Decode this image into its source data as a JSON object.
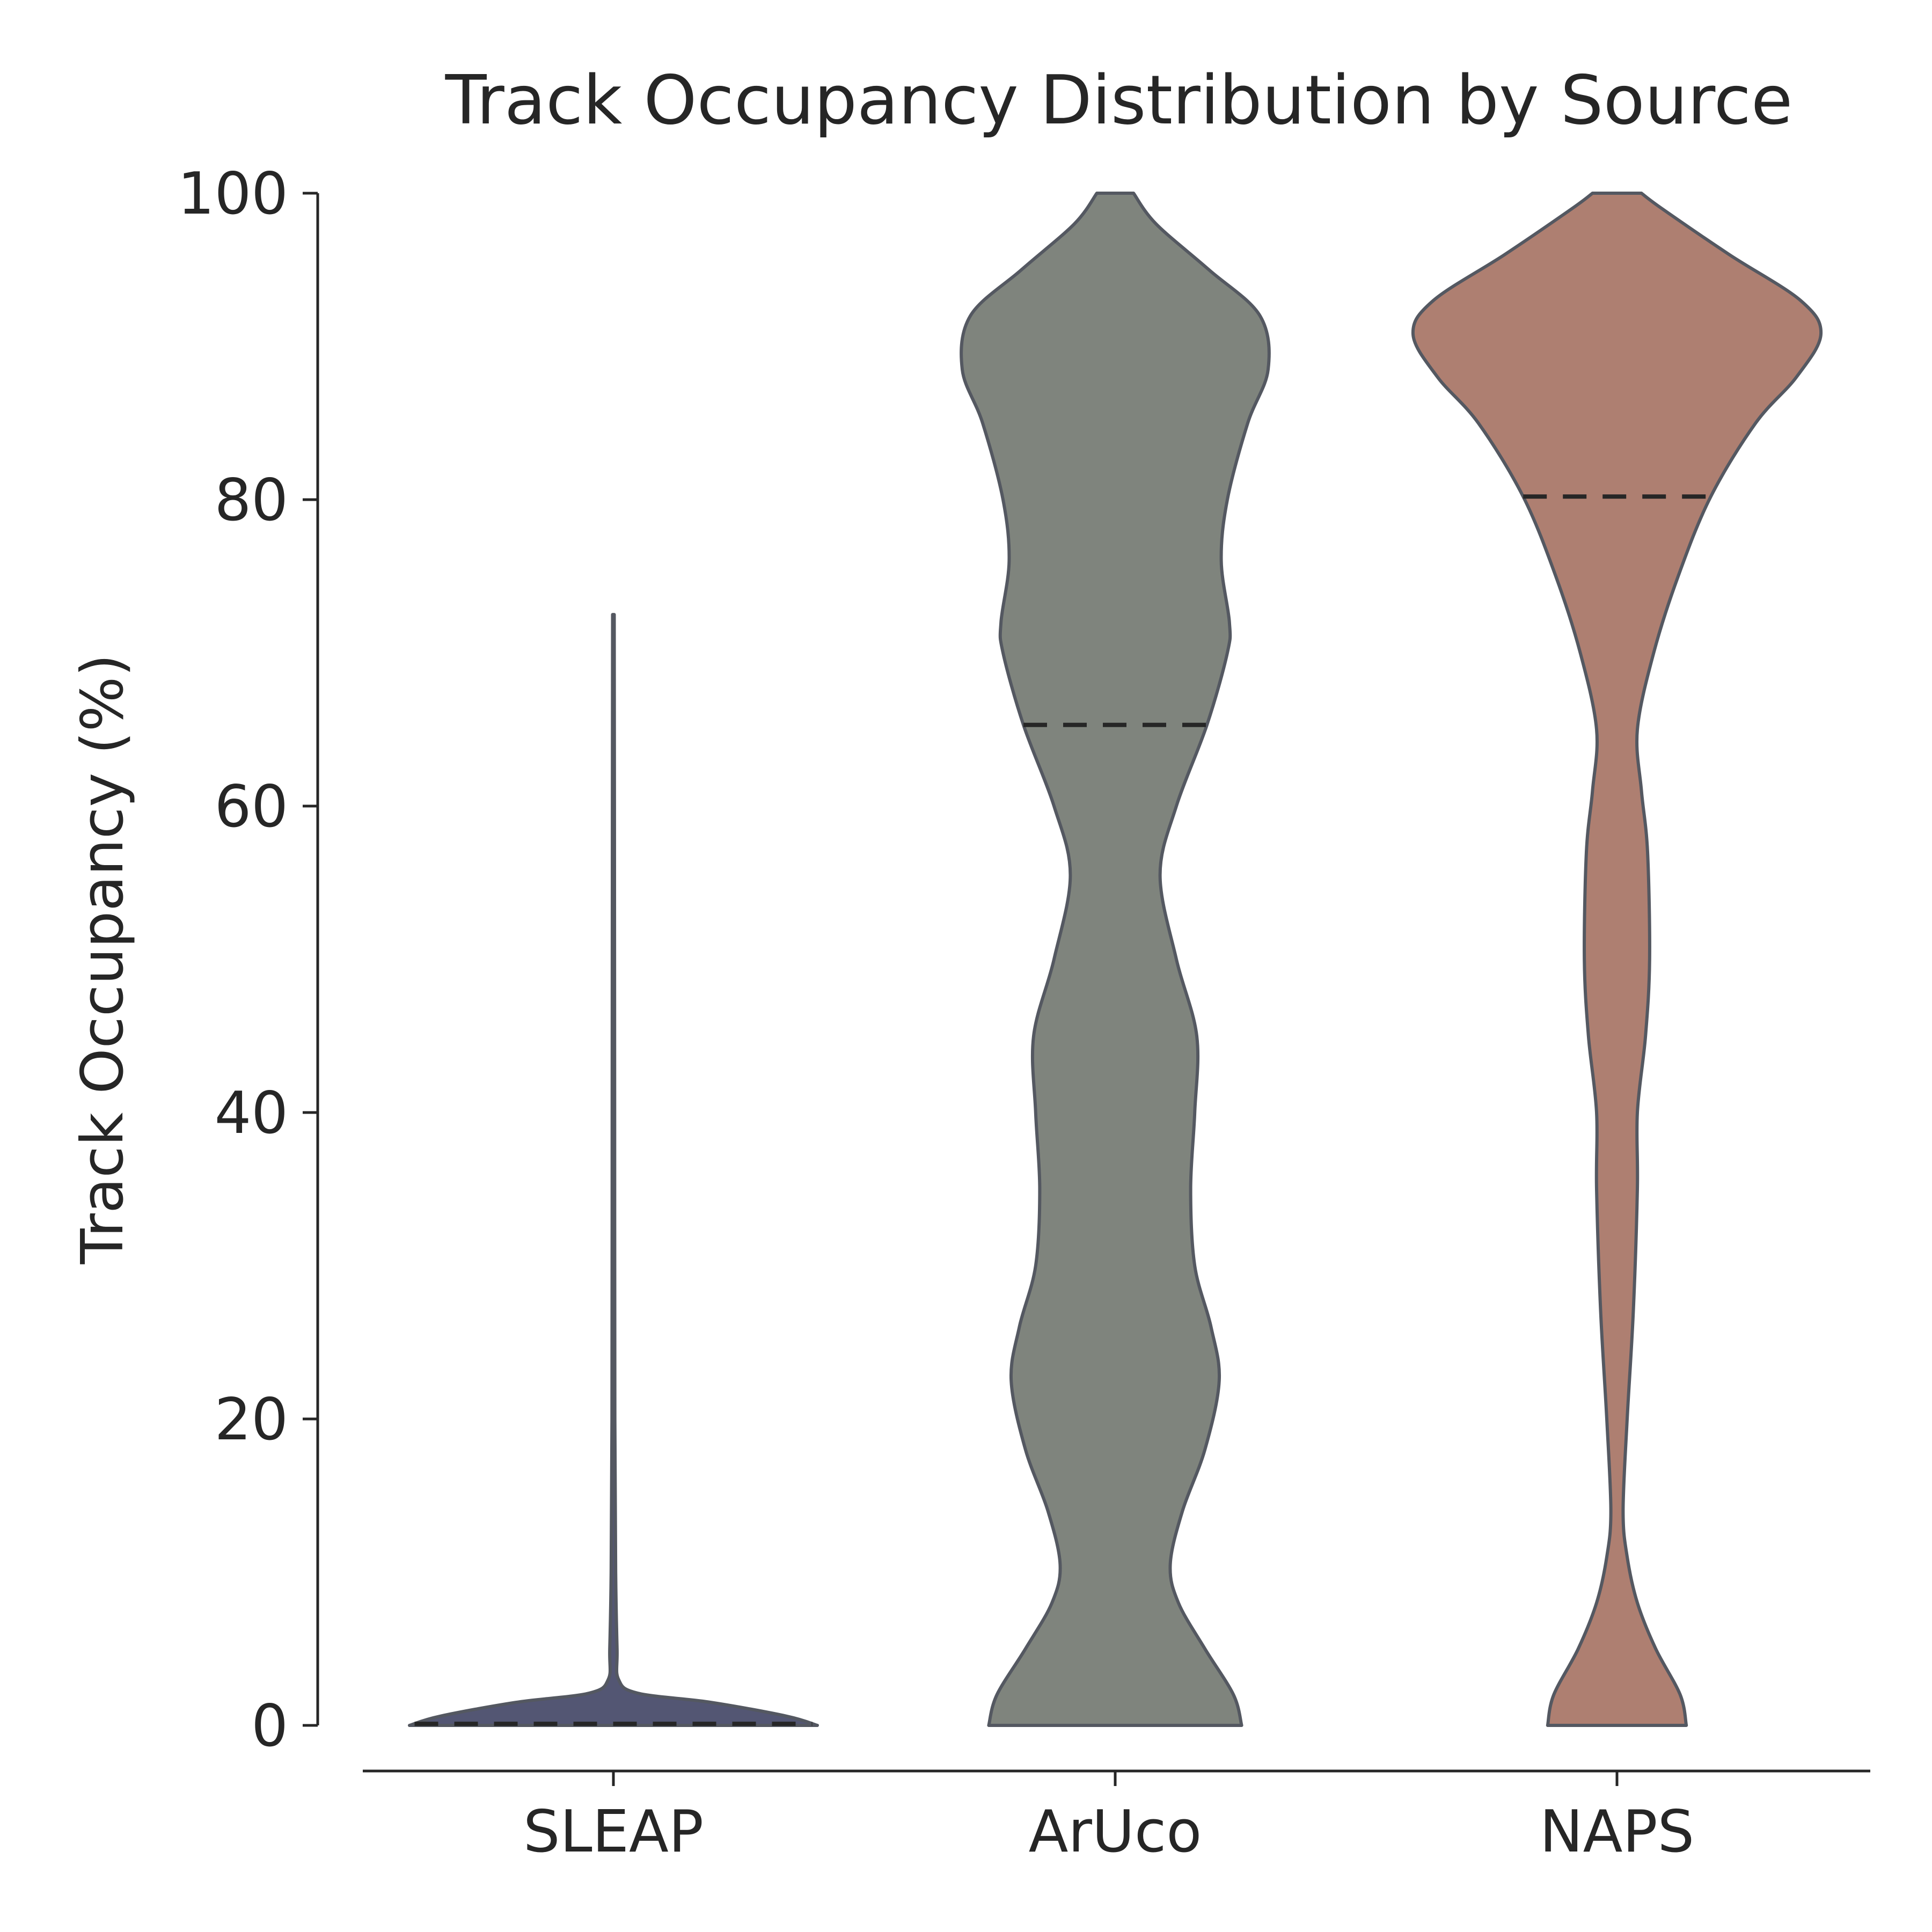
{
  "chart_data": {
    "type": "violin",
    "title": "Track Occupancy Distribution by Source",
    "ylabel": "Track Occupancy (%)",
    "xlabel": "",
    "ylim": [
      0,
      100
    ],
    "yticks": [
      0,
      20,
      40,
      60,
      80,
      100
    ],
    "categories": [
      "SLEAP",
      "ArUco",
      "NAPS"
    ],
    "grid": false,
    "legend": "none",
    "series": [
      {
        "category": "SLEAP",
        "color": "#535673",
        "median": 0.1,
        "range": [
          0,
          72.5
        ],
        "density": [
          [
            0,
            1.0
          ],
          [
            0.6,
            0.85
          ],
          [
            1.5,
            0.48
          ],
          [
            2.1,
            0.12
          ],
          [
            3,
            0.025
          ],
          [
            5,
            0.018
          ],
          [
            10,
            0.011
          ],
          [
            20,
            0.007
          ],
          [
            40,
            0.006
          ],
          [
            60,
            0.005
          ],
          [
            72.5,
            0.004
          ]
        ]
      },
      {
        "category": "ArUco",
        "color": "#7f847d",
        "median": 65.3,
        "range": [
          0,
          100
        ],
        "density": [
          [
            0,
            0.62
          ],
          [
            2,
            0.58
          ],
          [
            5,
            0.44
          ],
          [
            8,
            0.31
          ],
          [
            10.5,
            0.27
          ],
          [
            14,
            0.33
          ],
          [
            18,
            0.44
          ],
          [
            22.5,
            0.51
          ],
          [
            26,
            0.47
          ],
          [
            30,
            0.39
          ],
          [
            35,
            0.37
          ],
          [
            40,
            0.39
          ],
          [
            45,
            0.4
          ],
          [
            50,
            0.3
          ],
          [
            55.5,
            0.22
          ],
          [
            60,
            0.3
          ],
          [
            65.3,
            0.45
          ],
          [
            70,
            0.55
          ],
          [
            72,
            0.56
          ],
          [
            76,
            0.52
          ],
          [
            80,
            0.55
          ],
          [
            85,
            0.65
          ],
          [
            88.5,
            0.75
          ],
          [
            92,
            0.71
          ],
          [
            95,
            0.46
          ],
          [
            98,
            0.2
          ],
          [
            100,
            0.09
          ]
        ]
      },
      {
        "category": "NAPS",
        "color": "#ae7f71",
        "median": 80.2,
        "range": [
          0,
          100
        ],
        "density": [
          [
            0,
            0.34
          ],
          [
            2,
            0.31
          ],
          [
            5,
            0.19
          ],
          [
            8,
            0.1
          ],
          [
            11,
            0.05
          ],
          [
            14,
            0.03
          ],
          [
            20,
            0.05
          ],
          [
            27,
            0.08
          ],
          [
            35,
            0.1
          ],
          [
            40,
            0.1
          ],
          [
            45,
            0.14
          ],
          [
            50,
            0.16
          ],
          [
            57,
            0.15
          ],
          [
            61,
            0.12
          ],
          [
            65,
            0.1
          ],
          [
            70,
            0.18
          ],
          [
            75,
            0.3
          ],
          [
            80.2,
            0.46
          ],
          [
            85,
            0.68
          ],
          [
            88,
            0.88
          ],
          [
            90.8,
            1.0
          ],
          [
            93,
            0.9
          ],
          [
            96,
            0.55
          ],
          [
            99,
            0.22
          ],
          [
            100,
            0.12
          ]
        ]
      }
    ]
  }
}
